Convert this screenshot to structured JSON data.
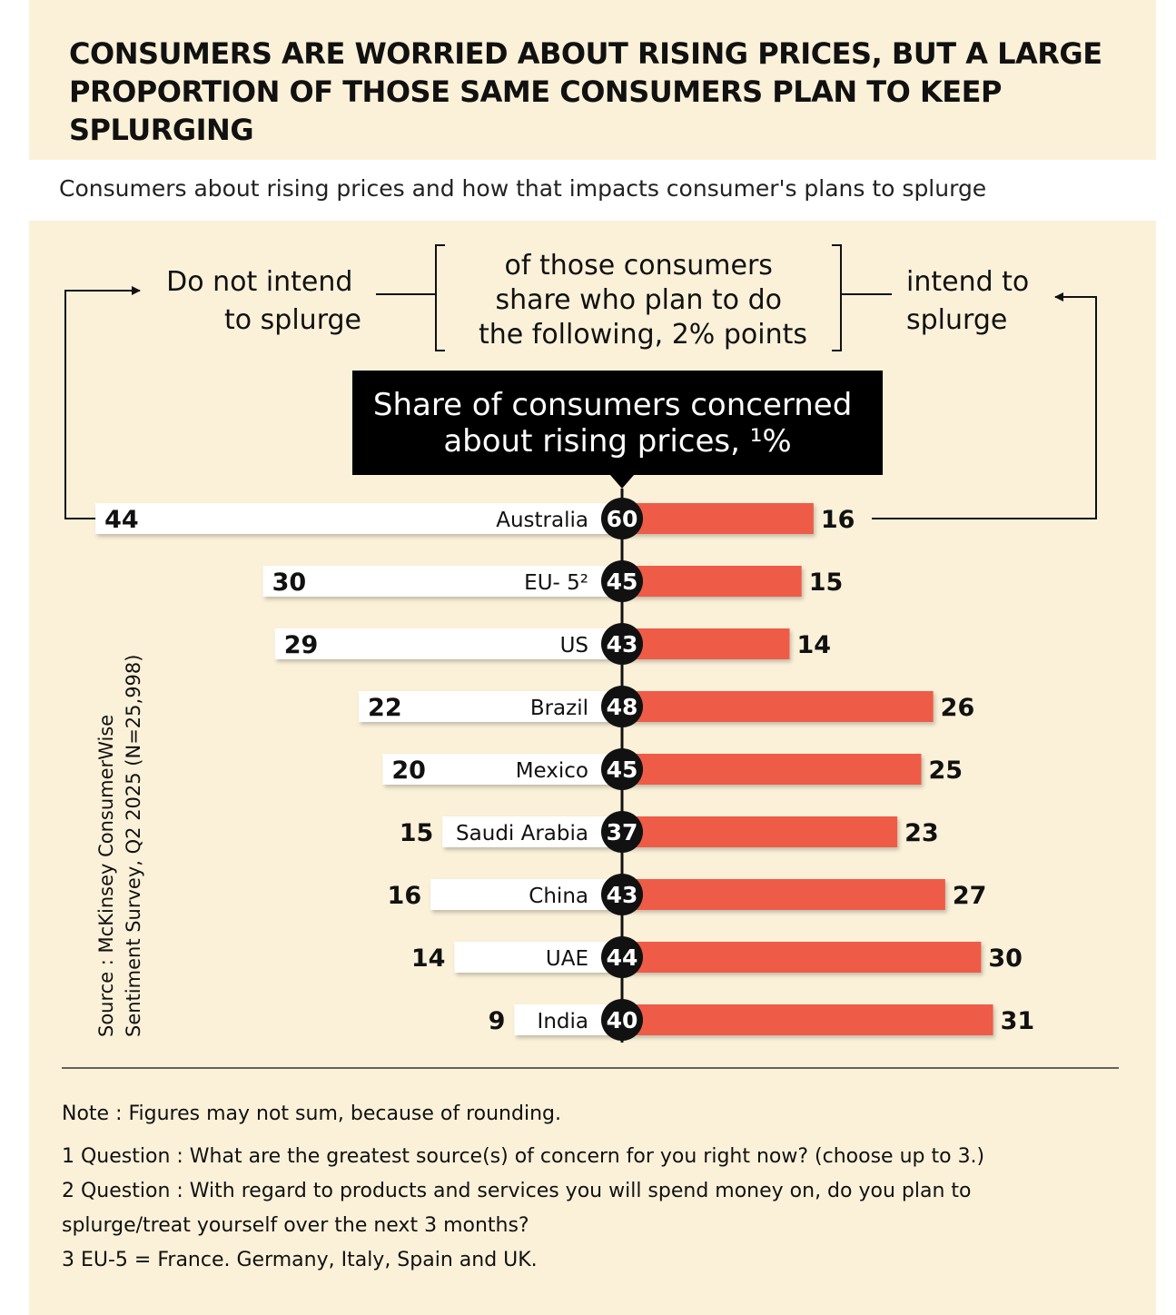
{
  "title": "CONSUMERS ARE WORRIED ABOUT RISING PRICES, BUT A LARGE PROPORTION OF THOSE SAME CONSUMERS PLAN TO KEEP SPLURGING",
  "subtitle": "Consumers about rising prices and how that impacts consumer's plans to splurge",
  "header": {
    "left_label_lines": [
      "Do not intend",
      "to splurge"
    ],
    "middle_label_lines": [
      "of those consumers",
      "share who plan to do",
      "the following, 2% points"
    ],
    "right_label_lines": [
      "intend to",
      "splurge"
    ],
    "concern_box_lines": [
      "Share of consumers concerned",
      "about rising prices, ¹%"
    ]
  },
  "colors": {
    "not_splurge_bar": "#ffffff",
    "splurge_bar": "#ee5b46",
    "center_circle": "#111111",
    "panel_bg": "#fbf1d9"
  },
  "chart_data": {
    "type": "bar",
    "orientation": "horizontal-diverging",
    "categories": [
      "Australia",
      "EU- 5²",
      "US",
      "Brazil",
      "Mexico",
      "Saudi Arabia",
      "China",
      "UAE",
      "India"
    ],
    "series": [
      {
        "name": "Do not intend to splurge",
        "values": [
          44,
          30,
          29,
          22,
          20,
          15,
          16,
          14,
          9
        ]
      },
      {
        "name": "intend to splurge",
        "values": [
          16,
          15,
          14,
          26,
          25,
          23,
          27,
          30,
          31
        ]
      },
      {
        "name": "Share of consumers concerned about rising prices",
        "values": [
          60,
          45,
          43,
          48,
          45,
          37,
          43,
          44,
          40
        ]
      }
    ]
  },
  "source_lines": [
    "Source : McKinsey ConsumerWise",
    "Sentiment Survey, Q2 2025 (N=25,998)"
  ],
  "notes": {
    "main": "Note : Figures may not sum, because of rounding.",
    "lines": [
      "1 Question : What are the greatest source(s) of concern for you right now? (choose up to 3.)",
      "2  Question : With regard to products and services you will spend money on, do you plan to",
      "splurge/treat yourself over the next 3 months?",
      "3 EU-5 = France. Germany, Italy, Spain and UK."
    ]
  }
}
